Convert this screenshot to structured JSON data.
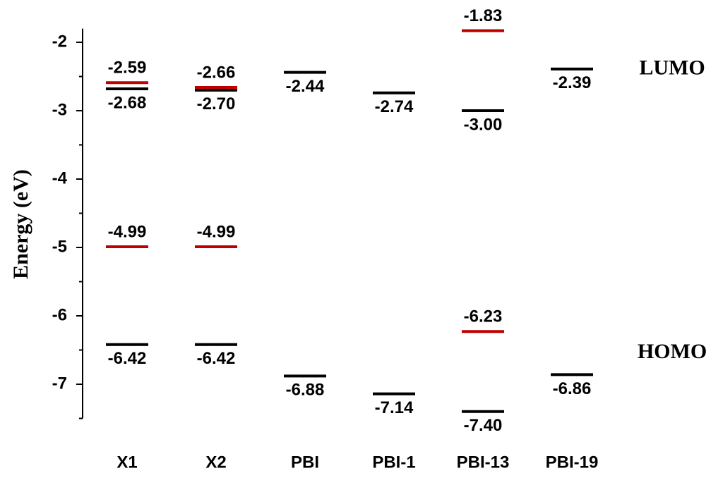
{
  "chart_data": {
    "type": "energy-level",
    "y_label": "Energy (eV)",
    "categories": [
      "X1",
      "X2",
      "PBI",
      "PBI-1",
      "PBI-13",
      "PBI-19"
    ],
    "series": [
      {
        "color": "#000000",
        "label_position": "below",
        "values": [
          -2.68,
          -2.7,
          -2.44,
          -2.74,
          -3.0,
          -2.39
        ],
        "value_labels": [
          "-2.68",
          "-2.70",
          "-2.44",
          "-2.74",
          "-3.00",
          "-2.39"
        ]
      },
      {
        "color": "#000000",
        "label_position": "below",
        "values": [
          -6.42,
          -6.42,
          -6.88,
          -7.14,
          -7.4,
          -6.86
        ],
        "value_labels": [
          "-6.42",
          "-6.42",
          "-6.88",
          "-7.14",
          "-7.40",
          "-6.86"
        ]
      },
      {
        "color": "#c00000",
        "label_position": "above",
        "values": [
          -2.59,
          -2.66,
          null,
          null,
          -1.83,
          null
        ],
        "value_labels": [
          "-2.59",
          "-2.66",
          null,
          null,
          "-1.83",
          null
        ]
      },
      {
        "color": "#c00000",
        "label_position": "above",
        "values": [
          -4.99,
          -4.99,
          null,
          null,
          -6.23,
          null
        ],
        "value_labels": [
          "-4.99",
          "-4.99",
          null,
          null,
          "-6.23",
          null
        ]
      }
    ],
    "annotations": [
      {
        "text": "LUMO",
        "value": -2.4
      },
      {
        "text": "HOMO",
        "value": -6.55
      }
    ],
    "ylim": [
      -7.5,
      -1.8
    ],
    "yticks": [
      -7,
      -6,
      -5,
      -4,
      -3,
      -2
    ],
    "yminor_ticks": [
      -7.5,
      -6.5,
      -5.5,
      -4.5,
      -3.5,
      -2.5
    ]
  }
}
